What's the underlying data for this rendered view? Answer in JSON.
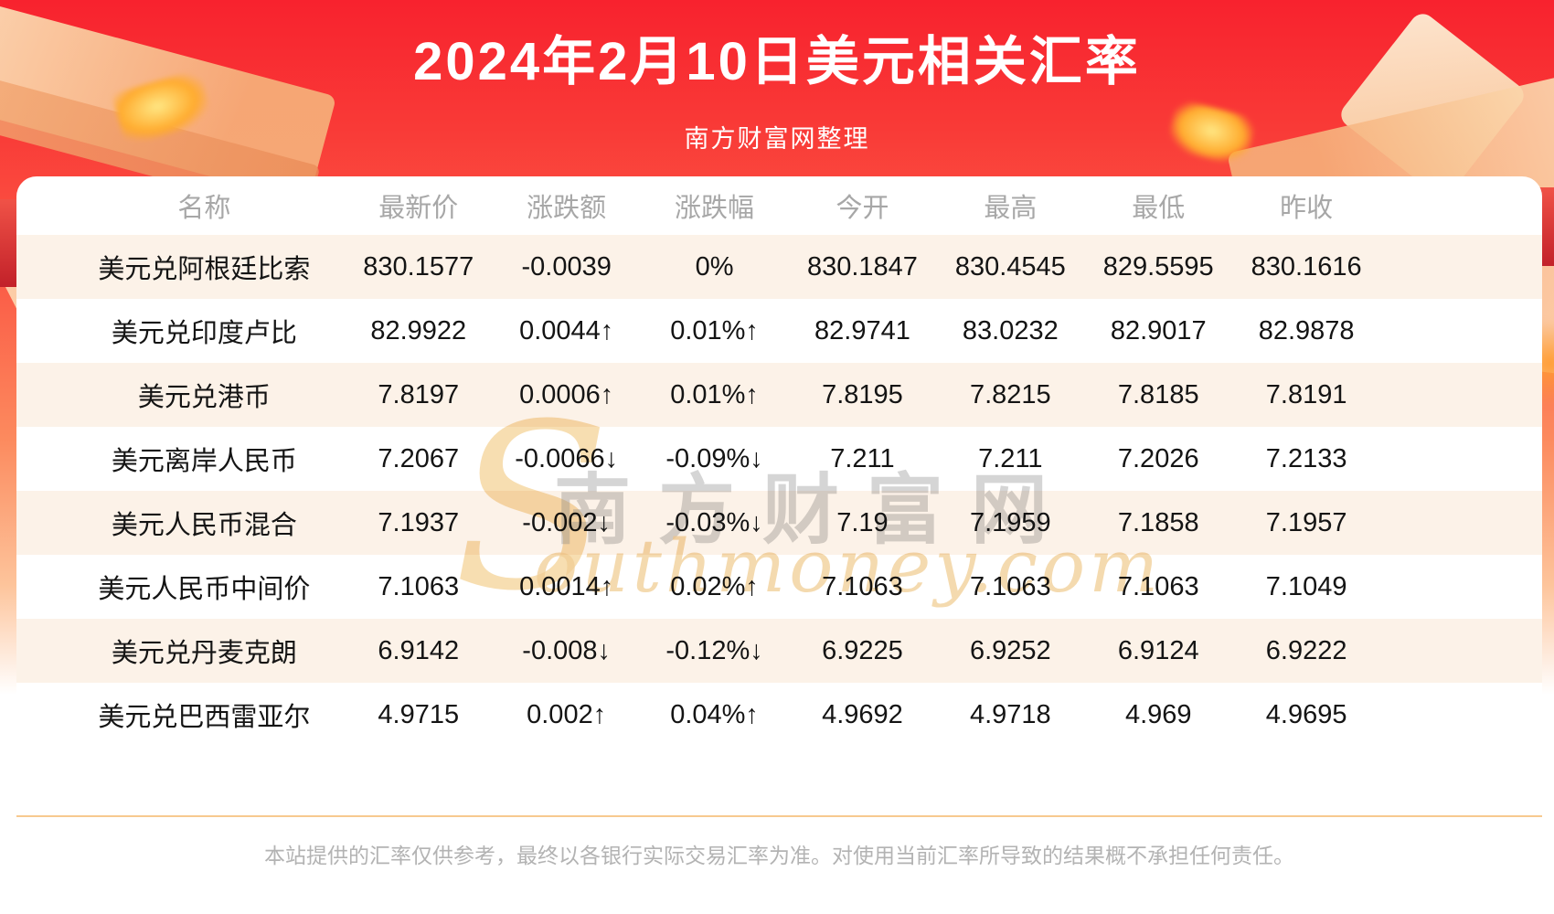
{
  "header": {
    "title": "2024年2月10日美元相关汇率",
    "subtitle": "南方财富网整理"
  },
  "table": {
    "columns": [
      "名称",
      "最新价",
      "涨跌额",
      "涨跌幅",
      "今开",
      "最高",
      "最低",
      "昨收"
    ],
    "rows": [
      {
        "name": "美元兑阿根廷比索",
        "latest": "830.1577",
        "change": "-0.0039",
        "change_pct": "0%",
        "open": "830.1847",
        "high": "830.4545",
        "low": "829.5595",
        "prev_close": "830.1616",
        "trend": "flat"
      },
      {
        "name": "美元兑印度卢比",
        "latest": "82.9922",
        "change": "0.0044↑",
        "change_pct": "0.01%↑",
        "open": "82.9741",
        "high": "83.0232",
        "low": "82.9017",
        "prev_close": "82.9878",
        "trend": "up"
      },
      {
        "name": "美元兑港币",
        "latest": "7.8197",
        "change": "0.0006↑",
        "change_pct": "0.01%↑",
        "open": "7.8195",
        "high": "7.8215",
        "low": "7.8185",
        "prev_close": "7.8191",
        "trend": "up"
      },
      {
        "name": "美元离岸人民币",
        "latest": "7.2067",
        "change": "-0.0066↓",
        "change_pct": "-0.09%↓",
        "open": "7.211",
        "high": "7.211",
        "low": "7.2026",
        "prev_close": "7.2133",
        "trend": "down"
      },
      {
        "name": "美元人民币混合",
        "latest": "7.1937",
        "change": "-0.002↓",
        "change_pct": "-0.03%↓",
        "open": "7.19",
        "high": "7.1959",
        "low": "7.1858",
        "prev_close": "7.1957",
        "trend": "down"
      },
      {
        "name": "美元人民币中间价",
        "latest": "7.1063",
        "change": "0.0014↑",
        "change_pct": "0.02%↑",
        "open": "7.1063",
        "high": "7.1063",
        "low": "7.1063",
        "prev_close": "7.1049",
        "trend": "up"
      },
      {
        "name": "美元兑丹麦克朗",
        "latest": "6.9142",
        "change": "-0.008↓",
        "change_pct": "-0.12%↓",
        "open": "6.9225",
        "high": "6.9252",
        "low": "6.9124",
        "prev_close": "6.9222",
        "trend": "down"
      },
      {
        "name": "美元兑巴西雷亚尔",
        "latest": "4.9715",
        "change": "0.002↑",
        "change_pct": "0.04%↑",
        "open": "4.9692",
        "high": "4.9718",
        "low": "4.969",
        "prev_close": "4.9695",
        "trend": "up"
      }
    ]
  },
  "watermark": {
    "s": "S",
    "cn": "南方财富网",
    "en": "outhmoney.com"
  },
  "footer": {
    "disclaimer": "本站提供的汇率仅供参考，最终以各银行实际交易汇率为准。对使用当前汇率所导致的结果概不承担任何责任。"
  },
  "colors": {
    "up": "#f50d0d",
    "down": "#0b8e0b",
    "flat": "#141414",
    "row_alt": "#fcf2e8",
    "divider": "#f7c98f",
    "accent_red": "#f8222e"
  }
}
